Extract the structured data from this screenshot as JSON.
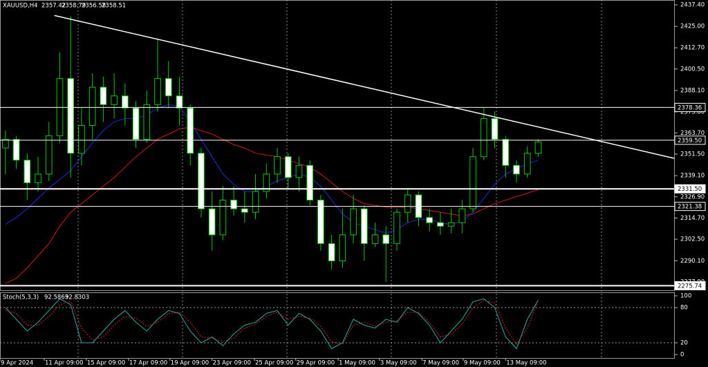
{
  "header": {
    "symbol": "XAUUSD,H4",
    "ohlc": [
      2357.42,
      2358.79,
      2356.58,
      2358.51
    ]
  },
  "chart_data": [
    {
      "type": "candlestick",
      "open": [
        2355,
        2360,
        2348,
        2335,
        2340,
        2362,
        2395,
        2352,
        2368,
        2390,
        2380,
        2385,
        2378,
        2360,
        2380,
        2395,
        2385,
        2378,
        2352,
        2320,
        2305,
        2325,
        2320,
        2318,
        2330,
        2340,
        2350,
        2338,
        2345,
        2325,
        2300,
        2290,
        2305,
        2320,
        2300,
        2305,
        2300,
        2318,
        2328,
        2315,
        2312,
        2310,
        2312,
        2320,
        2350,
        2372,
        2360,
        2345,
        2340,
        2352
      ],
      "high": [
        2365,
        2362,
        2352,
        2350,
        2370,
        2410,
        2431,
        2378,
        2398,
        2396,
        2398,
        2392,
        2382,
        2388,
        2418,
        2405,
        2396,
        2380,
        2355,
        2330,
        2333,
        2333,
        2330,
        2340,
        2346,
        2355,
        2352,
        2350,
        2348,
        2328,
        2305,
        2320,
        2328,
        2322,
        2312,
        2310,
        2320,
        2332,
        2330,
        2320,
        2318,
        2320,
        2325,
        2355,
        2378,
        2376,
        2362,
        2348,
        2356,
        2360
      ],
      "low": [
        2340,
        2343,
        2325,
        2330,
        2336,
        2358,
        2338,
        2345,
        2360,
        2370,
        2372,
        2368,
        2355,
        2358,
        2376,
        2378,
        2368,
        2345,
        2315,
        2296,
        2302,
        2316,
        2312,
        2314,
        2326,
        2335,
        2332,
        2330,
        2322,
        2296,
        2285,
        2286,
        2300,
        2290,
        2298,
        2278,
        2296,
        2312,
        2310,
        2307,
        2305,
        2306,
        2306,
        2318,
        2348,
        2355,
        2338,
        2335,
        2338,
        2350
      ],
      "close": [
        2360,
        2348,
        2335,
        2340,
        2362,
        2395,
        2352,
        2368,
        2390,
        2380,
        2385,
        2378,
        2360,
        2380,
        2395,
        2385,
        2378,
        2352,
        2320,
        2305,
        2325,
        2320,
        2318,
        2330,
        2340,
        2350,
        2338,
        2345,
        2325,
        2300,
        2290,
        2305,
        2320,
        2300,
        2305,
        2300,
        2318,
        2328,
        2315,
        2312,
        2310,
        2312,
        2320,
        2350,
        2372,
        2360,
        2345,
        2340,
        2352,
        2358.51
      ],
      "up_color": "#000000",
      "down_color": "#ffffff",
      "wick_color": "#00d000",
      "series": [
        {
          "color": "#1e2bd8",
          "values": [
            2311,
            2315,
            2320,
            2326,
            2332,
            2337,
            2342,
            2350,
            2358,
            2365,
            2370,
            2372,
            2372,
            2374,
            2378,
            2380,
            2379,
            2370,
            2360,
            2350,
            2340,
            2334,
            2330,
            2330,
            2333,
            2336,
            2338,
            2340,
            2338,
            2333,
            2325,
            2317,
            2312,
            2310,
            2308,
            2306,
            2308,
            2312,
            2314,
            2314,
            2312,
            2311,
            2313,
            2318,
            2326,
            2334,
            2340,
            2343,
            2346,
            2348
          ]
        },
        {
          "color": "#d01818",
          "values": [
            2277,
            2280,
            2286,
            2293,
            2300,
            2310,
            2318,
            2323,
            2328,
            2333,
            2338,
            2344,
            2350,
            2355,
            2360,
            2363,
            2366,
            2367,
            2365,
            2363,
            2360,
            2357,
            2355,
            2352,
            2351,
            2350,
            2348,
            2346,
            2344,
            2340,
            2335,
            2330,
            2326,
            2323,
            2322,
            2321,
            2321,
            2321,
            2320,
            2319,
            2318,
            2317,
            2316,
            2317,
            2320,
            2323,
            2325,
            2327,
            2329,
            2331
          ]
        }
      ],
      "xlim": [
        -0.5,
        61.5
      ],
      "ylim": [
        2273.1,
        2440.2
      ],
      "yticks": [
        {
          "value": 2437.4,
          "label": "2437.40"
        },
        {
          "value": 2425,
          "label": "2425.00"
        },
        {
          "value": 2412.7,
          "label": "2412.70"
        },
        {
          "value": 2400.5,
          "label": "2400.50"
        },
        {
          "value": 2388.1,
          "label": "2388.10"
        },
        {
          "value": 2375.8,
          "label": "2375.80"
        },
        {
          "value": 2363.7,
          "label": "2363.70"
        },
        {
          "value": 2351.5,
          "label": "2351.50"
        },
        {
          "value": 2339.1,
          "label": "2339.10"
        },
        {
          "value": 2326.9,
          "label": "2326.90"
        },
        {
          "value": 2314.7,
          "label": "2314.70"
        },
        {
          "value": 2302.5,
          "label": "2302.50"
        },
        {
          "value": 2290.1,
          "label": "2290.10"
        },
        {
          "value": 2277.9,
          "label": "2277.90"
        }
      ],
      "xticks": [
        {
          "value": -0.5,
          "label": "9 Apr 2024"
        },
        {
          "value": 3.57,
          "label": "11 Apr 09:00"
        },
        {
          "value": 7.44,
          "label": "15 Apr 09:00"
        },
        {
          "value": 11.32,
          "label": "17 Apr 09:00"
        },
        {
          "value": 15.13,
          "label": "19 Apr 09:00"
        },
        {
          "value": 19.0,
          "label": "23 Apr 09:00"
        },
        {
          "value": 22.9,
          "label": "25 Apr 09:00"
        },
        {
          "value": 26.7,
          "label": "29 Apr 09:00"
        },
        {
          "value": 30.6,
          "label": "1 May 09:00"
        },
        {
          "value": 34.4,
          "label": "3 May 09:00"
        },
        {
          "value": 38.3,
          "label": "7 May 09:00"
        },
        {
          "value": 42.1,
          "label": "9 May 09:00"
        },
        {
          "value": 46.0,
          "label": "13 May 09:00"
        }
      ],
      "hlines": [
        {
          "value": 2378.36,
          "style": "thin"
        },
        {
          "value": 2359.5,
          "label": "2359.50",
          "style": "thin"
        },
        {
          "value": 2331.5,
          "label": "2331.50",
          "style": "thick"
        },
        {
          "value": 2321.38,
          "style": "thin"
        },
        {
          "value": 2275.74,
          "style": "thick"
        }
      ],
      "trendline": {
        "x": [
          4.5,
          61.5
        ],
        "y": [
          2431.3,
          2349.1
        ],
        "color": "#ffffff"
      }
    },
    {
      "type": "line",
      "title": "Stoch(5,3,3)",
      "printed_values": [
        92.5863,
        92.8303
      ],
      "series": [
        {
          "color": "#20b2aa",
          "style": "solid",
          "values": [
            80,
            60,
            40,
            55,
            75,
            95,
            85,
            20,
            20,
            40,
            60,
            75,
            55,
            40,
            60,
            75,
            70,
            40,
            20,
            30,
            15,
            35,
            50,
            55,
            70,
            75,
            50,
            70,
            60,
            40,
            10,
            20,
            60,
            50,
            45,
            60,
            55,
            80,
            70,
            50,
            20,
            40,
            60,
            90,
            95,
            80,
            30,
            10,
            60,
            92.59
          ]
        },
        {
          "color": "#e02020",
          "style": "dotted",
          "values": [
            75,
            70,
            50,
            50,
            65,
            85,
            90,
            45,
            25,
            30,
            50,
            65,
            62,
            48,
            55,
            70,
            72,
            55,
            30,
            28,
            22,
            28,
            45,
            52,
            65,
            72,
            60,
            65,
            62,
            48,
            22,
            18,
            50,
            55,
            48,
            55,
            58,
            72,
            72,
            55,
            30,
            35,
            52,
            80,
            92,
            88,
            45,
            18,
            45,
            92.83
          ]
        }
      ],
      "ylim": [
        -5.9,
        105.9
      ],
      "yticks": [
        0,
        20,
        80,
        100
      ]
    }
  ]
}
